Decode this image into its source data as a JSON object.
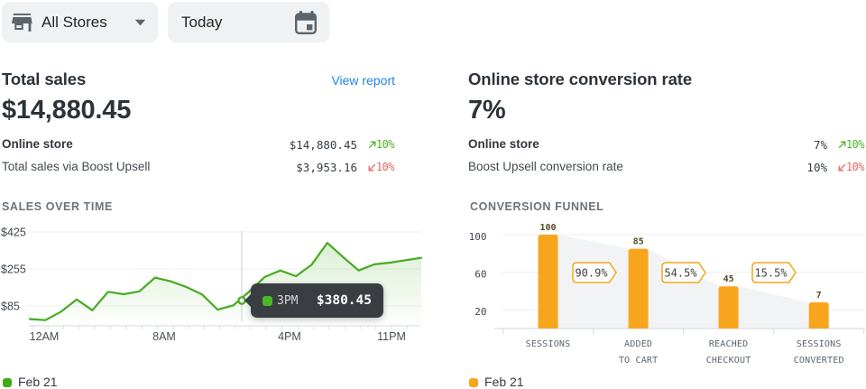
{
  "toolbar": {
    "store_filter": {
      "label": "All Stores",
      "icon": "storefront-icon"
    },
    "date_filter": {
      "label": "Today",
      "icon": "calendar-icon"
    }
  },
  "colors": {
    "green_line": "#46ab20",
    "green_legend": "#3ead15",
    "green_change": "#4cb02a",
    "red_change": "#e2685f",
    "orange_bar": "#f8a51e",
    "link_blue": "#1e87e0",
    "tooltip_bg": "#3a3d41",
    "funnel_shade": "#f2f3f5"
  },
  "panels": {
    "total_sales": {
      "title": "Total sales",
      "link": "View report",
      "big_value": "$14,880.45",
      "rows": [
        {
          "label": "Online store",
          "value": "$14,880.45",
          "change": "10%",
          "direction": "up"
        },
        {
          "label": "Total sales via Boost Upsell",
          "value": "$3,953.16",
          "change": "10%",
          "direction": "down"
        }
      ],
      "section_label": "SALES OVER TIME",
      "legend": "Feb 21"
    },
    "conversion": {
      "title": "Online store conversion rate",
      "big_value": "7%",
      "rows": [
        {
          "label": "Online store",
          "value": "7%",
          "change": "10%",
          "direction": "up"
        },
        {
          "label": "Boost Upsell conversion rate",
          "value": "10%",
          "change": "10%",
          "direction": "down"
        }
      ],
      "section_label": "CONVERSION FUNNEL",
      "legend": "Feb 21"
    }
  },
  "chart_data": [
    {
      "type": "area",
      "title": "Sales over time",
      "series": [
        {
          "name": "Feb 21",
          "values": [
            25,
            20,
            59,
            115,
            65,
            150,
            139,
            152,
            215,
            198,
            172,
            138,
            68,
            88,
            150,
            218,
            248,
            222,
            275,
            375,
            310,
            248,
            276,
            284,
            295,
            306
          ]
        }
      ],
      "x_tick_labels": [
        "12AM",
        "8AM",
        "4PM",
        "11PM"
      ],
      "y_tick_labels": [
        "$425",
        "$255",
        "$85"
      ],
      "y_tick_values": [
        425,
        255,
        85
      ],
      "ylim": [
        0,
        460
      ],
      "grid": "horizontal",
      "legend_position": "bottom-left",
      "tooltip": {
        "time": "3PM",
        "value": "$380.45"
      }
    },
    {
      "type": "bar",
      "title": "Conversion funnel",
      "series": [
        {
          "name": "Feb 21",
          "values": [
            100,
            85,
            45,
            7
          ]
        }
      ],
      "categories": [
        [
          "SESSIONS"
        ],
        [
          "ADDED",
          "TO CART"
        ],
        [
          "REACHED",
          "CHECKOUT"
        ],
        [
          "SESSIONS",
          "CONVERTED"
        ]
      ],
      "value_labels": [
        "100",
        "85",
        "45",
        "7"
      ],
      "drop_rates": [
        "90.9%",
        "54.5%",
        "15.5%"
      ],
      "y_tick_labels": [
        "100",
        "60",
        "20"
      ],
      "y_tick_values": [
        100,
        60,
        20
      ],
      "ylim": [
        0,
        121
      ],
      "grid": "horizontal",
      "legend_position": "bottom-left"
    }
  ]
}
